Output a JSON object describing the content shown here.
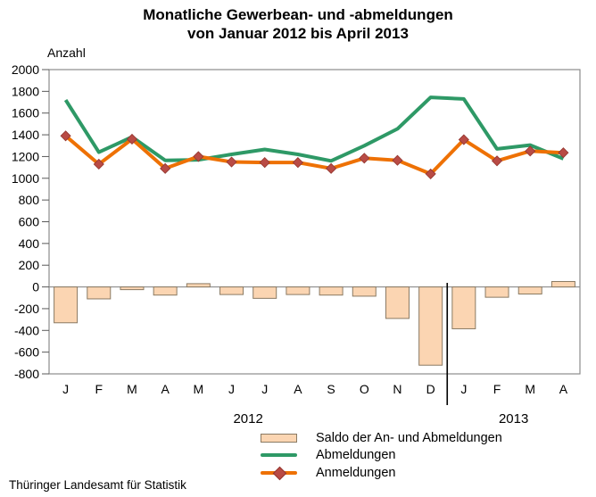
{
  "title": {
    "line1": "Monatliche Gewerbean- und -abmeldungen",
    "line2": "von Januar 2012 bis April 2013"
  },
  "y_axis_label": "Anzahl",
  "footer": "Thüringer Landesamt für Statistik",
  "legend": [
    {
      "key": "saldo",
      "label": "Saldo der An- und Abmeldungen",
      "swatch": "bar"
    },
    {
      "key": "abmeldungen",
      "label": "Abmeldungen",
      "swatch": "line"
    },
    {
      "key": "anmeldungen",
      "label": "Anmeldungen",
      "swatch": "line-diamond"
    }
  ],
  "chart_data": {
    "type": "bar+line",
    "title": "Monatliche Gewerbean- und -abmeldungen von Januar 2012 bis April 2013",
    "ylabel": "Anzahl",
    "ylim": [
      -800,
      2000
    ],
    "ytick_step": 200,
    "grid": false,
    "legend_position": "bottom",
    "categories": [
      "J",
      "F",
      "M",
      "A",
      "M",
      "J",
      "J",
      "A",
      "S",
      "O",
      "N",
      "D",
      "J",
      "F",
      "M",
      "A"
    ],
    "year_groups": [
      {
        "label": "2012",
        "from": 0,
        "to": 11
      },
      {
        "label": "2013",
        "from": 12,
        "to": 15
      }
    ],
    "series": [
      {
        "name": "Saldo der An- und Abmeldungen",
        "type": "bar",
        "values": [
          -330,
          -110,
          -25,
          -75,
          30,
          -70,
          -105,
          -70,
          -75,
          -85,
          -290,
          -720,
          -385,
          -95,
          -65,
          50
        ]
      },
      {
        "name": "Abmeldungen",
        "type": "line",
        "values": [
          1720,
          1240,
          1380,
          1165,
          1170,
          1220,
          1265,
          1220,
          1160,
          1300,
          1455,
          1745,
          1730,
          1270,
          1305,
          1180
        ]
      },
      {
        "name": "Anmeldungen",
        "type": "line",
        "marker": "diamond",
        "values": [
          1390,
          1130,
          1360,
          1090,
          1200,
          1150,
          1145,
          1145,
          1090,
          1185,
          1165,
          1040,
          1355,
          1160,
          1250,
          1235
        ]
      }
    ],
    "colors": {
      "bar_fill": "#fbd5b2",
      "bar_border": "#8a7a63",
      "abmeldungen": "#2e9966",
      "anmeldungen": "#ee7104",
      "marker_fill": "#b94b45",
      "marker_border": "#93362f",
      "axis": "#8c8c8c",
      "tick": "#595959",
      "separator": "#000000",
      "text": "#000000"
    }
  }
}
